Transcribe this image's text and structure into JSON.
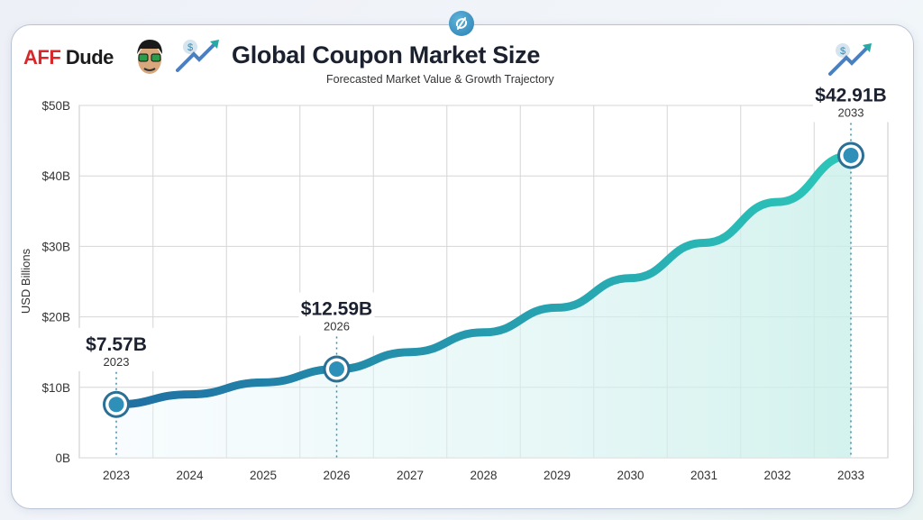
{
  "brand": {
    "part1": "AFF",
    "part2": "Dude"
  },
  "header": {
    "title": "Global Coupon Market Size",
    "subtitle": "Forecasted Market Value & Growth Trajectory"
  },
  "icons": [
    "sync-icon",
    "avatar-logo",
    "growth-arrow-dollar-icon"
  ],
  "colors": {
    "line_start": "#1f6fa3",
    "line_end": "#2cc7b9",
    "marker": "#2e8fb8"
  },
  "chart_data": {
    "type": "line",
    "title": "Global Coupon Market Size",
    "subtitle": "Forecasted Market Value & Growth Trajectory",
    "xlabel": "",
    "ylabel": "USD Billions",
    "categories": [
      "2023",
      "2024",
      "2025",
      "2026",
      "2027",
      "2028",
      "2029",
      "2030",
      "2031",
      "2032",
      "2033"
    ],
    "values": [
      7.57,
      9.0,
      10.7,
      12.59,
      15.0,
      17.8,
      21.3,
      25.5,
      30.5,
      36.3,
      42.91
    ],
    "ylim": [
      0,
      50
    ],
    "yticks": [
      0,
      10,
      20,
      30,
      40,
      50
    ],
    "ytick_labels": [
      "0B",
      "$10B",
      "$20B",
      "$30B",
      "$40B",
      "$50B"
    ],
    "grid": true,
    "area_fill": true,
    "annotations": [
      {
        "x": "2023",
        "value": 7.57,
        "label": "$7.57B",
        "year": "2023"
      },
      {
        "x": "2026",
        "value": 12.59,
        "label": "$12.59B",
        "year": "2026"
      },
      {
        "x": "2033",
        "value": 42.91,
        "label": "$42.91B",
        "year": "2033"
      }
    ]
  }
}
